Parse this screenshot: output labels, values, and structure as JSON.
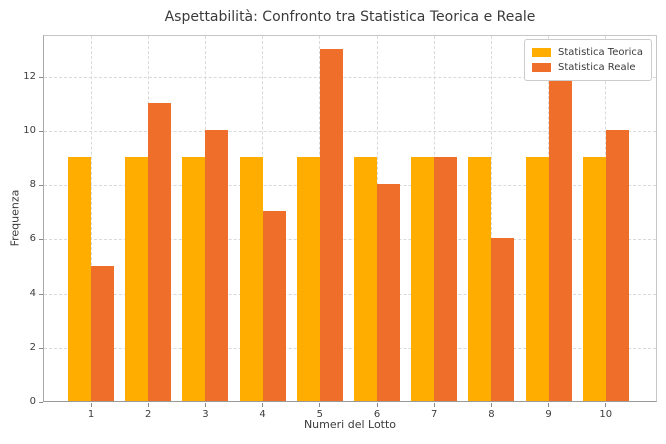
{
  "chart_data": {
    "type": "bar",
    "title": "Aspettabilità: Confronto tra Statistica Teorica e Reale",
    "xlabel": "Numeri del Lotto",
    "ylabel": "Frequenza",
    "categories": [
      "1",
      "2",
      "3",
      "4",
      "5",
      "6",
      "7",
      "8",
      "9",
      "10"
    ],
    "series": [
      {
        "name": "Statistica Teorica",
        "color": "#FFAE00",
        "values": [
          9,
          9,
          9,
          9,
          9,
          9,
          9,
          9,
          9,
          9
        ]
      },
      {
        "name": "Statistica Reale",
        "color": "#EF6F2A",
        "values": [
          5,
          11,
          10,
          7,
          13,
          8,
          9,
          6,
          12,
          10
        ]
      }
    ],
    "ylim": [
      0,
      13.55
    ],
    "yticks": [
      0,
      2,
      4,
      6,
      8,
      10,
      12
    ],
    "grid": true,
    "grid_style": "dashed",
    "legend_position": "upper right",
    "colors": {
      "background": "#ffffff",
      "text": "#3a3a3a",
      "gridline": "#d9d9d9",
      "spine": "#a8a8a8"
    }
  }
}
